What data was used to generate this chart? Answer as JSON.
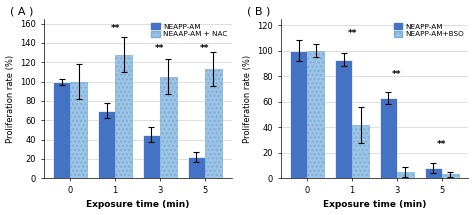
{
  "panel_A": {
    "title": "( A )",
    "categories": [
      0,
      1,
      3,
      5
    ],
    "series1_label": "NEAPP-AM",
    "series2_label": "NEAAP-AM + NAC",
    "series1_values": [
      100,
      70,
      45,
      22
    ],
    "series2_values": [
      100,
      128,
      105,
      113
    ],
    "series1_errors": [
      3,
      8,
      8,
      5
    ],
    "series2_errors": [
      18,
      18,
      18,
      18
    ],
    "series1_color": "#4472C4",
    "series2_color": "#9DC3E6",
    "ylim": [
      0,
      165
    ],
    "yticks": [
      0,
      20,
      40,
      60,
      80,
      100,
      120,
      140,
      160
    ],
    "ylabel": "Proliferation rate (%)",
    "xlabel": "Exposure time (min)",
    "significance": [
      {
        "xi": 1,
        "y": 150,
        "text": "**"
      },
      {
        "xi": 2,
        "y": 130,
        "text": "**"
      },
      {
        "xi": 3,
        "y": 130,
        "text": "**"
      }
    ]
  },
  "panel_B": {
    "title": "( B )",
    "categories": [
      0,
      1,
      3,
      5
    ],
    "series1_label": "NEAPP-AM",
    "series2_label": "NEAPP-AM+BSO",
    "series1_values": [
      100,
      93,
      63,
      8
    ],
    "series2_values": [
      100,
      42,
      5,
      3
    ],
    "series1_errors": [
      8,
      5,
      5,
      4
    ],
    "series2_errors": [
      5,
      14,
      4,
      2
    ],
    "series1_color": "#4472C4",
    "series2_color": "#9DC3E6",
    "ylim": [
      0,
      125
    ],
    "yticks": [
      0,
      20,
      40,
      60,
      80,
      100,
      120
    ],
    "ylabel": "Proliferation rate (%)",
    "xlabel": "Exposure time (min)",
    "significance": [
      {
        "xi": 1,
        "y": 110,
        "text": "**"
      },
      {
        "xi": 2,
        "y": 78,
        "text": "**"
      },
      {
        "xi": 3,
        "y": 23,
        "text": "**"
      }
    ]
  },
  "bar_width": 0.38,
  "figure_bg": "#ffffff"
}
